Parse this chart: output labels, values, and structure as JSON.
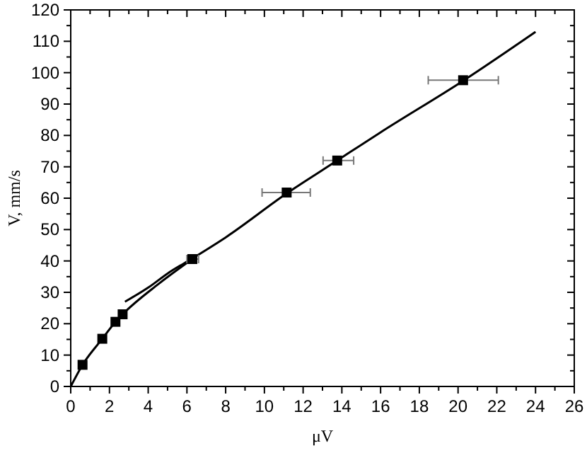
{
  "chart_data": {
    "type": "scatter",
    "xlabel": "μV",
    "ylabel": "V, mm/s",
    "xlim": [
      0,
      26
    ],
    "ylim": [
      0,
      120
    ],
    "xticks": [
      0,
      2,
      4,
      6,
      8,
      10,
      12,
      14,
      16,
      18,
      20,
      22,
      24,
      26
    ],
    "yticks": [
      0,
      10,
      20,
      30,
      40,
      50,
      60,
      70,
      80,
      90,
      100,
      110,
      120
    ],
    "grid": false,
    "series": [
      {
        "type": "line",
        "color": "#000000",
        "x": [
          0,
          0.61,
          1.63,
          2.31,
          2.68,
          4.5,
          6.28
        ],
        "values": [
          0,
          6.9,
          15.2,
          20.6,
          23.0,
          32.5,
          40.6
        ],
        "marker": "none",
        "line_style": "solid"
      },
      {
        "type": "line",
        "color": "#000000",
        "x": [
          2.8,
          4,
          5,
          6.28,
          8,
          11.15,
          13.76,
          16,
          20.26,
          24
        ],
        "values": [
          27,
          31.5,
          36,
          40.8,
          47.5,
          61.5,
          72,
          81,
          97.4,
          113
        ],
        "marker": "none",
        "line_style": "solid"
      },
      {
        "color": "#000000",
        "marker": "square",
        "x": [
          0.61,
          1.63,
          2.31,
          2.68,
          6.28,
          11.15,
          13.76,
          20.26
        ],
        "values": [
          6.9,
          15.2,
          20.6,
          23.0,
          40.6,
          61.8,
          72.0,
          97.6
        ],
        "xerrors": [
          null,
          null,
          null,
          null,
          [
            6.0,
            6.6
          ],
          [
            9.88,
            12.37
          ],
          [
            13.03,
            14.61
          ],
          [
            18.46,
            22.08
          ]
        ]
      }
    ]
  }
}
